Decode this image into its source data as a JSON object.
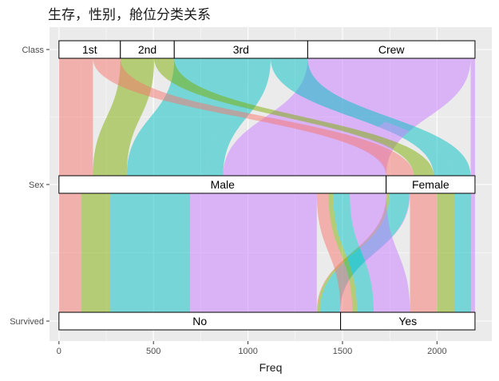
{
  "chart_data": {
    "type": "alluvial",
    "title": "生存，性别，舱位分类关系",
    "xlabel": "Freq",
    "xlim": [
      -50,
      2290
    ],
    "x_ticks": [
      0,
      500,
      1000,
      1500,
      2000
    ],
    "axes": [
      "Class",
      "Sex",
      "Survived"
    ],
    "strata": {
      "Class": [
        {
          "label": "1st",
          "count": 325
        },
        {
          "label": "2nd",
          "count": 285
        },
        {
          "label": "3rd",
          "count": 706
        },
        {
          "label": "Crew",
          "count": 885
        }
      ],
      "Sex": [
        {
          "label": "Male",
          "count": 1731
        },
        {
          "label": "Female",
          "count": 470
        }
      ],
      "Survived": [
        {
          "label": "No",
          "count": 1490
        },
        {
          "label": "Yes",
          "count": 711
        }
      ]
    },
    "flows": [
      {
        "Class": "1st",
        "Sex": "Male",
        "Survived": "No",
        "Freq": 118
      },
      {
        "Class": "2nd",
        "Sex": "Male",
        "Survived": "No",
        "Freq": 154
      },
      {
        "Class": "3rd",
        "Sex": "Male",
        "Survived": "No",
        "Freq": 422
      },
      {
        "Class": "Crew",
        "Sex": "Male",
        "Survived": "No",
        "Freq": 670
      },
      {
        "Class": "1st",
        "Sex": "Female",
        "Survived": "No",
        "Freq": 4
      },
      {
        "Class": "2nd",
        "Sex": "Female",
        "Survived": "No",
        "Freq": 13
      },
      {
        "Class": "3rd",
        "Sex": "Female",
        "Survived": "No",
        "Freq": 106
      },
      {
        "Class": "Crew",
        "Sex": "Female",
        "Survived": "No",
        "Freq": 3
      },
      {
        "Class": "1st",
        "Sex": "Male",
        "Survived": "Yes",
        "Freq": 62
      },
      {
        "Class": "2nd",
        "Sex": "Male",
        "Survived": "Yes",
        "Freq": 25
      },
      {
        "Class": "3rd",
        "Sex": "Male",
        "Survived": "Yes",
        "Freq": 88
      },
      {
        "Class": "Crew",
        "Sex": "Male",
        "Survived": "Yes",
        "Freq": 192
      },
      {
        "Class": "1st",
        "Sex": "Female",
        "Survived": "Yes",
        "Freq": 141
      },
      {
        "Class": "2nd",
        "Sex": "Female",
        "Survived": "Yes",
        "Freq": 93
      },
      {
        "Class": "3rd",
        "Sex": "Female",
        "Survived": "Yes",
        "Freq": 90
      },
      {
        "Class": "Crew",
        "Sex": "Female",
        "Survived": "Yes",
        "Freq": 20
      }
    ],
    "colors": {
      "1st": "#F8766D",
      "2nd": "#7CAE00",
      "3rd": "#00BFC4",
      "Crew": "#C77CFF"
    },
    "panel_background": "#EBEBEB",
    "grid": true,
    "legend": "none"
  }
}
